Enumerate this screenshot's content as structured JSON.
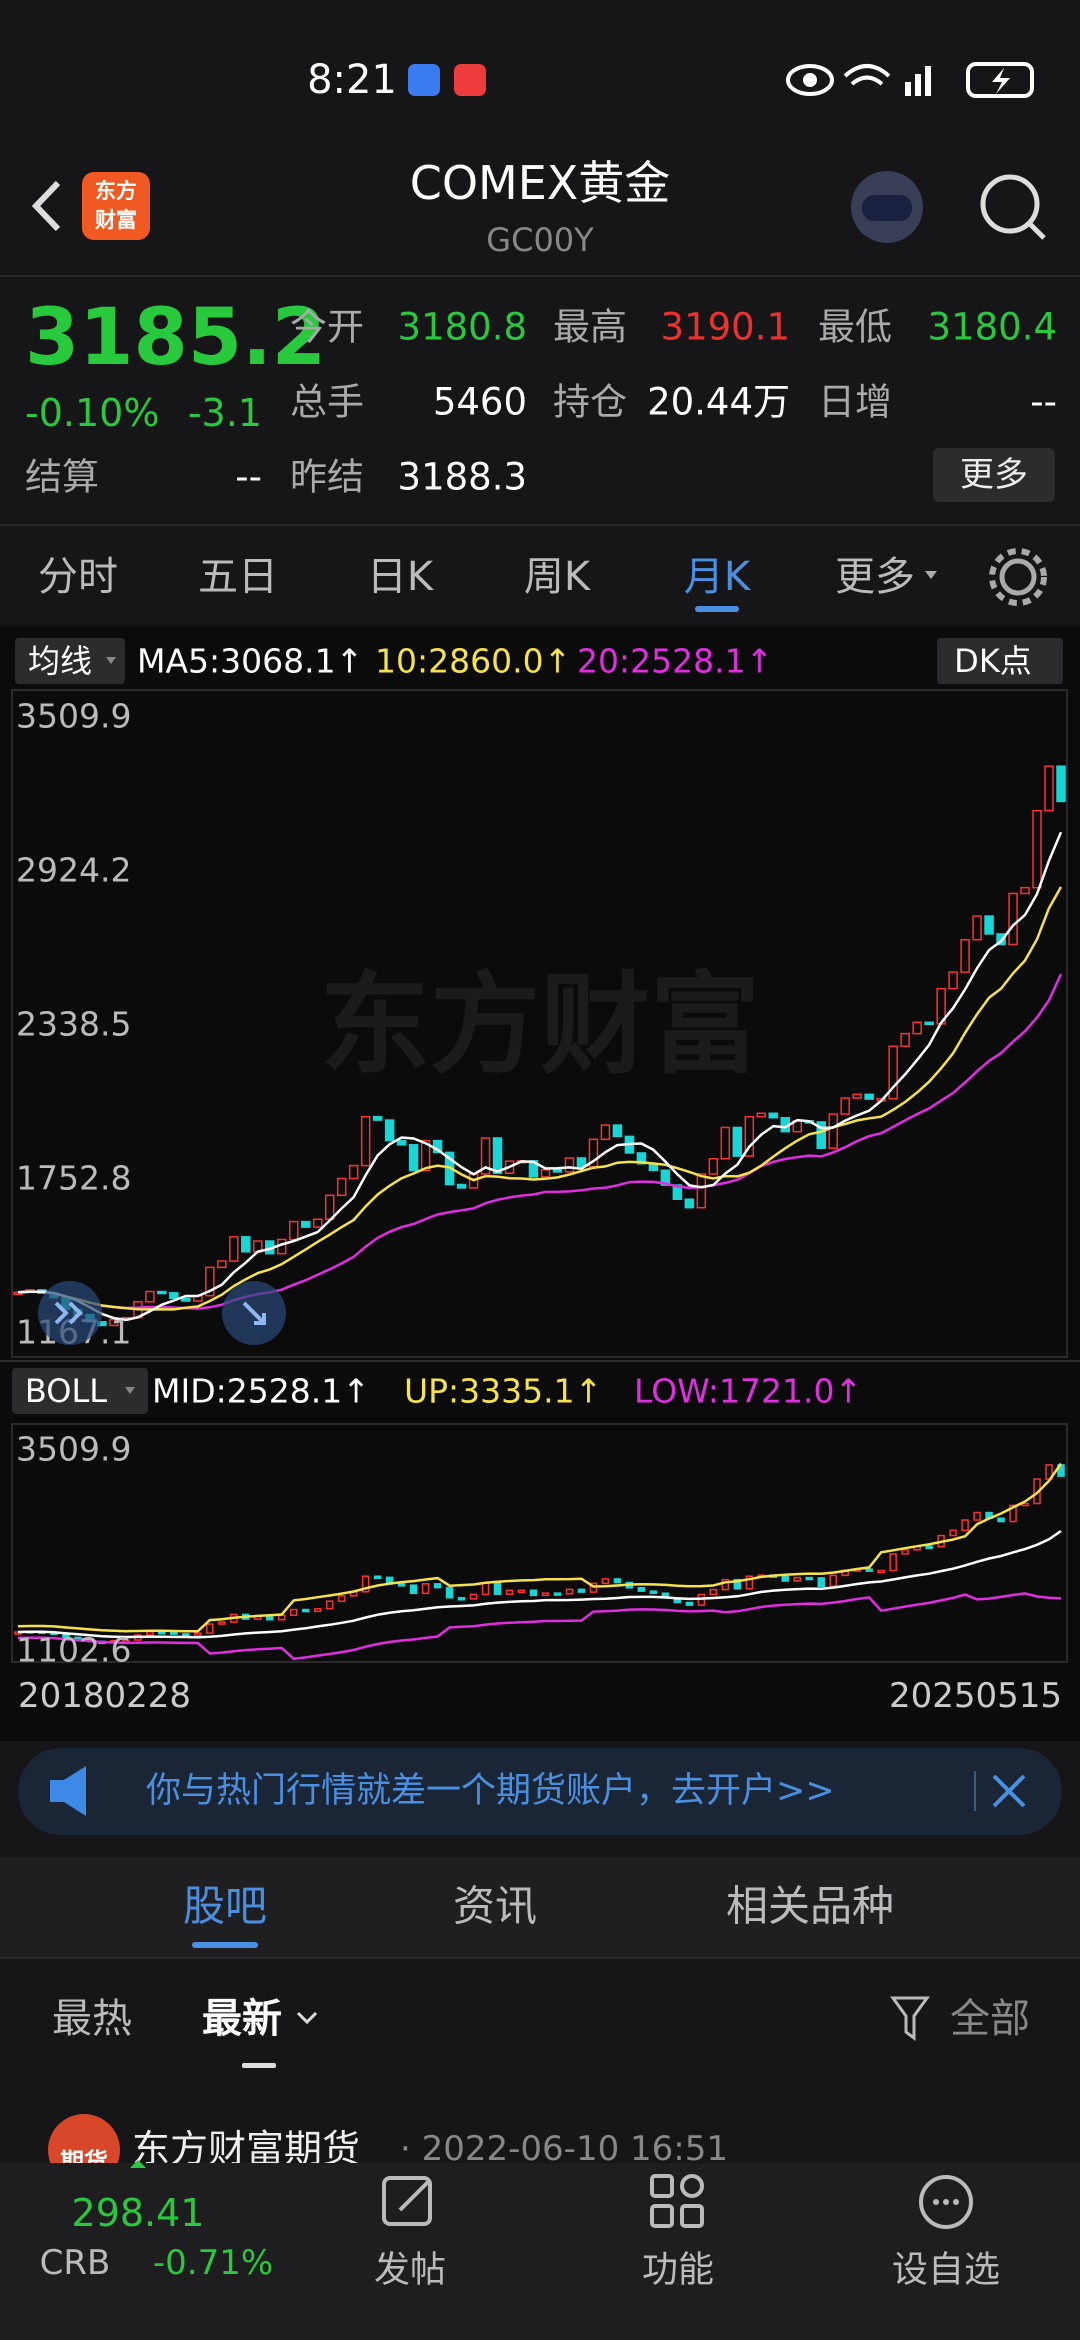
{
  "status_bar": {
    "time": "8:21"
  },
  "header": {
    "logo": [
      "东方",
      "财富"
    ],
    "title": "COMEX黄金",
    "code": "GC00Y"
  },
  "quote": {
    "price": "3185.2",
    "change_pct": "-0.10%",
    "change": "-3.1",
    "fields": [
      {
        "label": "今开",
        "value": "3180.8",
        "color": "#28c93c"
      },
      {
        "label": "最高",
        "value": "3190.1",
        "color": "#f0302c"
      },
      {
        "label": "最低",
        "value": "3180.4",
        "color": "#28c93c"
      },
      {
        "label": "总手",
        "value": "5460",
        "color": "#ffffff"
      },
      {
        "label": "持仓",
        "value": "20.44万",
        "color": "#ffffff"
      },
      {
        "label": "日增",
        "value": "--",
        "color": "#ffffff"
      },
      {
        "label": "结算",
        "value": "--",
        "color": "#ffffff"
      },
      {
        "label": "昨结",
        "value": "3188.3",
        "color": "#ffffff"
      }
    ],
    "more_button": "更多"
  },
  "period_tabs": {
    "items": [
      "分时",
      "五日",
      "日K",
      "周K",
      "月K",
      "更多"
    ],
    "active": 4
  },
  "chart_data": {
    "type": "candlestick",
    "ma_legend": {
      "button": "均线",
      "ma5": "MA5:3068.1↑",
      "ma10": "10:2860.0↑",
      "ma20": "20:2528.1↑",
      "dk_button": "DK点"
    },
    "watermark": "东方财富",
    "closes": [
      1318,
      1327,
      1315,
      1298,
      1253,
      1233,
      1206,
      1192,
      1214,
      1222,
      1282,
      1321,
      1316,
      1295,
      1285,
      1305,
      1413,
      1437,
      1529,
      1472,
      1513,
      1465,
      1519,
      1587,
      1566,
      1596,
      1687,
      1751,
      1800,
      1986,
      1973,
      1895,
      1879,
      1781,
      1895,
      1850,
      1728,
      1715,
      1768,
      1905,
      1771,
      1817,
      1818,
      1757,
      1784,
      1776,
      1829,
      1796,
      1900,
      1954,
      1911,
      1848,
      1807,
      1782,
      1726,
      1672,
      1640,
      1768,
      1826,
      1945,
      1836,
      1986,
      1999,
      1982,
      1929,
      1970,
      1966,
      1866,
      1996,
      2057,
      2071,
      2053,
      2054,
      2254,
      2302,
      2345,
      2339,
      2473,
      2536,
      2659,
      2749,
      2681,
      2641,
      2835,
      2857,
      3150,
      3319,
      3185
    ],
    "ma5": [
      1318,
      1320,
      1320,
      1315,
      1302,
      1285,
      1261,
      1236,
      1220,
      1213,
      1223,
      1246,
      1271,
      1287,
      1304,
      1304,
      1323,
      1347,
      1394,
      1431,
      1473,
      1483,
      1500,
      1513,
      1530,
      1547,
      1591,
      1637,
      1680,
      1764,
      1839,
      1881,
      1907,
      1903,
      1885,
      1860,
      1827,
      1794,
      1767,
      1793,
      1777,
      1795,
      1816,
      1814,
      1789,
      1790,
      1793,
      1788,
      1817,
      1851,
      1878,
      1882,
      1884,
      1860,
      1815,
      1767,
      1725,
      1718,
      1726,
      1770,
      1803,
      1872,
      1918,
      1950,
      1946,
      1973,
      1969,
      1943,
      1945,
      1971,
      1991,
      2009,
      2046,
      2098,
      2147,
      2202,
      2259,
      2343,
      2399,
      2470,
      2551,
      2620,
      2653,
      2713,
      2753,
      2833,
      2960,
      3068.1
    ],
    "ma10": [
      1318,
      1320,
      1320,
      1315,
      1302,
      1291,
      1279,
      1268,
      1262,
      1258,
      1254,
      1253,
      1253,
      1253,
      1259,
      1264,
      1285,
      1309,
      1342,
      1368,
      1391,
      1405,
      1425,
      1453,
      1481,
      1510,
      1537,
      1566,
      1593,
      1645,
      1690,
      1723,
      1752,
      1770,
      1790,
      1800,
      1793,
      1766,
      1745,
      1760,
      1758,
      1752,
      1751,
      1747,
      1750,
      1755,
      1766,
      1779,
      1792,
      1797,
      1811,
      1814,
      1813,
      1808,
      1803,
      1790,
      1776,
      1760,
      1751,
      1760,
      1759,
      1773,
      1800,
      1834,
      1866,
      1895,
      1919,
      1929,
      1946,
      1958,
      1972,
      1980,
      1986,
      2012,
      2042,
      2078,
      2119,
      2170,
      2227,
      2305,
      2376,
      2439,
      2473,
      2531,
      2580,
      2661,
      2779,
      2860.0
    ],
    "ma20": [
      1318,
      1320,
      1320,
      1315,
      1302,
      1291,
      1279,
      1268,
      1262,
      1258,
      1260,
      1262,
      1262,
      1260,
      1258,
      1256,
      1261,
      1271,
      1288,
      1301,
      1311,
      1318,
      1328,
      1347,
      1364,
      1385,
      1405,
      1428,
      1453,
      1492,
      1525,
      1548,
      1566,
      1578,
      1597,
      1614,
      1623,
      1630,
      1637,
      1657,
      1670,
      1679,
      1686,
      1690,
      1700,
      1700,
      1702,
      1706,
      1713,
      1716,
      1725,
      1737,
      1739,
      1738,
      1732,
      1721,
      1715,
      1718,
      1725,
      1734,
      1746,
      1771,
      1798,
      1814,
      1825,
      1832,
      1838,
      1835,
      1850,
      1870,
      1893,
      1912,
      1923,
      1947,
      1972,
      1996,
      2017,
      2047,
      2076,
      2116,
      2159,
      2198,
      2228,
      2271,
      2311,
      2363,
      2429,
      2528.1
    ],
    "boll_up": [
      1388,
      1390,
      1390,
      1385,
      1372,
      1361,
      1349,
      1338,
      1332,
      1328,
      1330,
      1332,
      1332,
      1330,
      1328,
      1326,
      1461,
      1471,
      1488,
      1501,
      1511,
      1518,
      1528,
      1697,
      1714,
      1735,
      1755,
      1778,
      1803,
      1842,
      1875,
      1898,
      1916,
      1928,
      1947,
      1964,
      1873,
      1880,
      1887,
      1907,
      1920,
      1929,
      1936,
      1940,
      1950,
      1950,
      1952,
      1956,
      1863,
      1866,
      1875,
      1887,
      1889,
      1888,
      1882,
      1871,
      1865,
      1868,
      1875,
      1914,
      1926,
      1951,
      1978,
      1994,
      2005,
      2012,
      2018,
      2015,
      2030,
      2050,
      2073,
      2092,
      2273,
      2297,
      2322,
      2346,
      2367,
      2397,
      2426,
      2466,
      2609,
      2678,
      2738,
      2811,
      2881,
      2983,
      3129,
      3335.1
    ],
    "boll_low": [
      1248,
      1250,
      1250,
      1245,
      1232,
      1221,
      1209,
      1198,
      1192,
      1188,
      1190,
      1192,
      1192,
      1190,
      1188,
      1186,
      1061,
      1071,
      1088,
      1101,
      1111,
      1118,
      1128,
      997,
      1014,
      1035,
      1055,
      1078,
      1103,
      1142,
      1175,
      1198,
      1216,
      1228,
      1247,
      1264,
      1373,
      1380,
      1387,
      1407,
      1420,
      1429,
      1436,
      1440,
      1450,
      1450,
      1452,
      1456,
      1563,
      1566,
      1575,
      1587,
      1589,
      1588,
      1582,
      1571,
      1565,
      1568,
      1575,
      1554,
      1566,
      1591,
      1618,
      1634,
      1645,
      1652,
      1658,
      1655,
      1670,
      1690,
      1713,
      1732,
      1573,
      1597,
      1622,
      1646,
      1667,
      1697,
      1726,
      1766,
      1709,
      1718,
      1738,
      1761,
      1781,
      1743,
      1729,
      1721.0
    ],
    "up_color": "#ff3030",
    "down_color": "#18d6d6",
    "ma_colors": {
      "ma5": "#ffffff",
      "ma10": "#f6e24a",
      "ma20": "#e02ee0"
    },
    "ylim": [
      1167.1,
      3509.9
    ],
    "yticks": [
      3509.9,
      2924.2,
      2338.5,
      1752.8,
      1167.1
    ],
    "boll_legend": {
      "button": "BOLL",
      "mid": "MID:2528.1↑",
      "up": "UP:3335.1↑",
      "low": "LOW:1721.0↑"
    },
    "boll_colors": {
      "mid": "#ffffff",
      "up": "#f6e24a",
      "low": "#e02ee0"
    },
    "boll_ylim": [
      1102.6,
      3509.9
    ],
    "boll_yticks": [
      3509.9,
      1102.6
    ],
    "date_labels": [
      "20180228",
      "20250515"
    ]
  },
  "banner": {
    "text": "你与热门行情就差一个期货账户，去开户>>"
  },
  "section_tabs": {
    "items": [
      "股吧",
      "资讯",
      "相关品种"
    ],
    "active": 0
  },
  "filter": {
    "hot": "最热",
    "latest": "最新",
    "all": "全部"
  },
  "post": {
    "avatar": "期货",
    "author": "东方财富期货",
    "time": "· 2022-06-10 16:51"
  },
  "bottom_nav": {
    "index_value": "298.41",
    "index_name": "CRB",
    "index_change": "-0.71%",
    "items": [
      "发帖",
      "功能",
      "设自选"
    ]
  }
}
